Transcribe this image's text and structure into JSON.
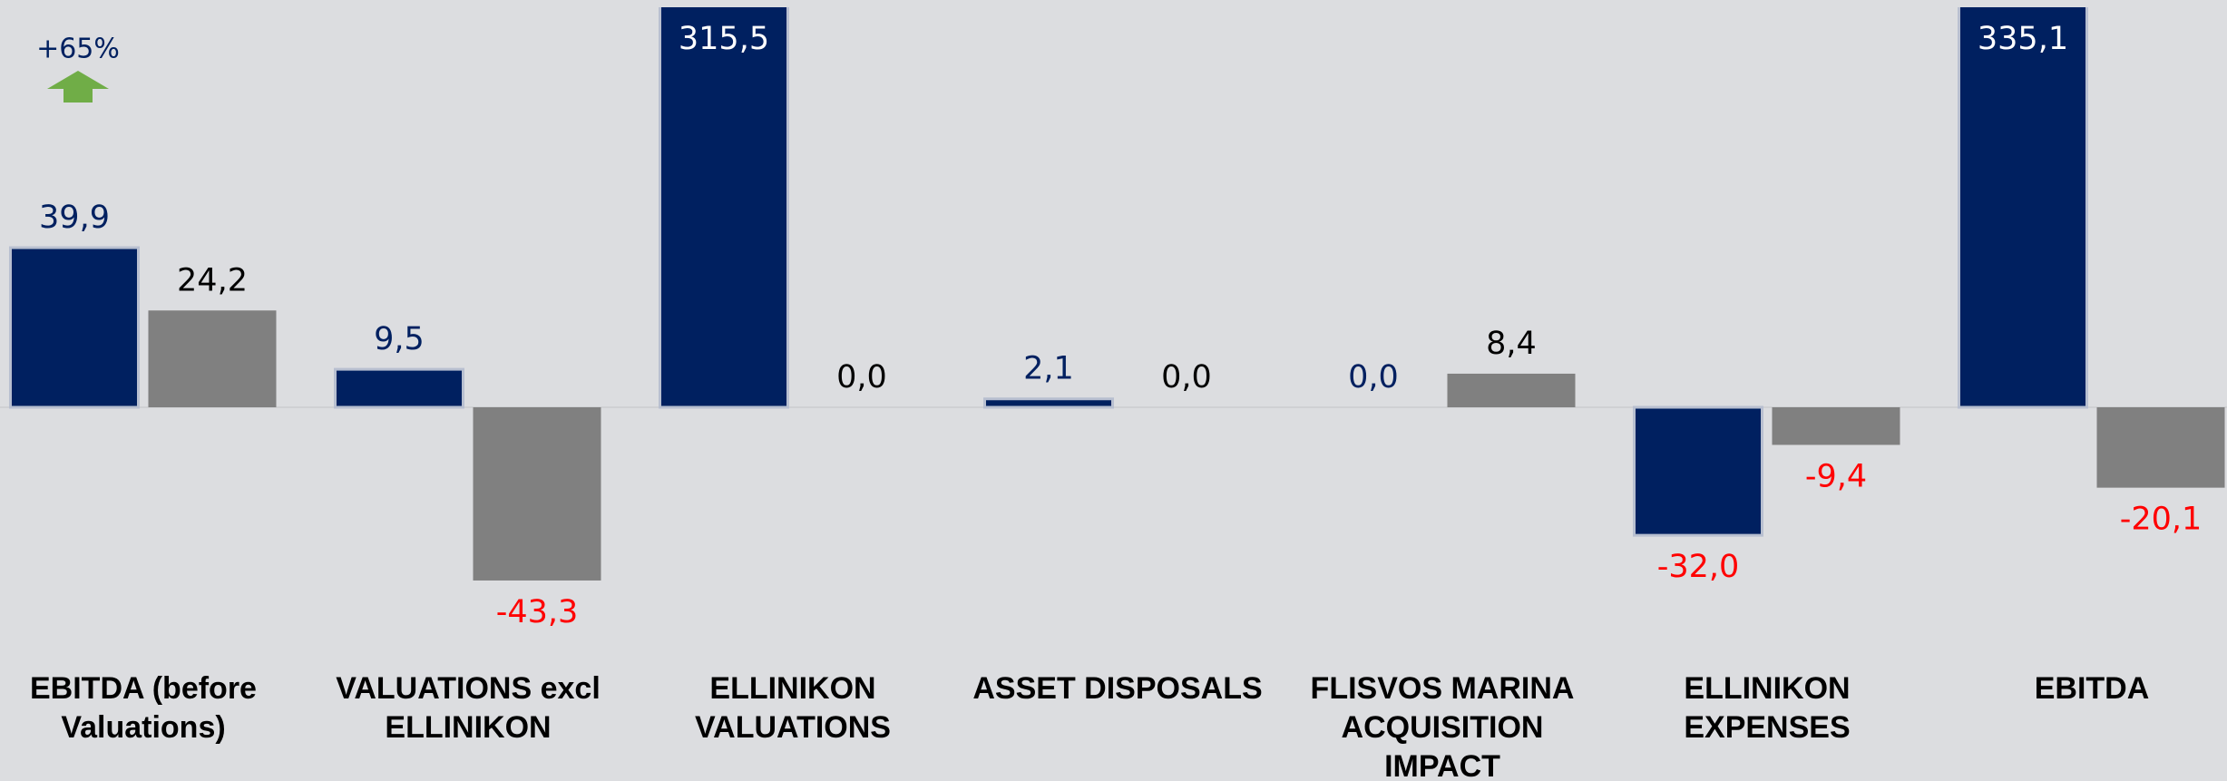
{
  "chart_data": {
    "type": "bar",
    "categories": [
      "EBITDA (before Valuations)",
      "VALUATIONS excl ELLINIKON",
      "ELLINIKON VALUATIONS",
      "ASSET DISPOSALS",
      "FLISVOS MARINA ACQUISITION IMPACT",
      "ELLINIKON EXPENSES",
      "EBITDA"
    ],
    "series": [
      {
        "color": "#002060",
        "label_color": "#002060",
        "values": [
          39.9,
          9.5,
          315.5,
          2.1,
          0.0,
          -32.0,
          335.1
        ],
        "value_labels": [
          "39,9",
          "9,5",
          "315,5",
          "2,1",
          "0,0",
          "-32,0",
          "335,1"
        ]
      },
      {
        "color": "#808080",
        "label_color": "#000000",
        "values": [
          24.2,
          -43.3,
          0.0,
          0.0,
          8.4,
          -9.4,
          -20.1
        ],
        "value_labels": [
          "24,2",
          "-43,3",
          "0,0",
          "0,0",
          "8,4",
          "-9,4",
          "-20,1"
        ]
      }
    ],
    "negative_label_color": "#ff0000",
    "ylim": [
      -60,
      100
    ],
    "annotation": {
      "text": "+65%",
      "color": "#70ad47",
      "text_color": "#002060"
    }
  }
}
